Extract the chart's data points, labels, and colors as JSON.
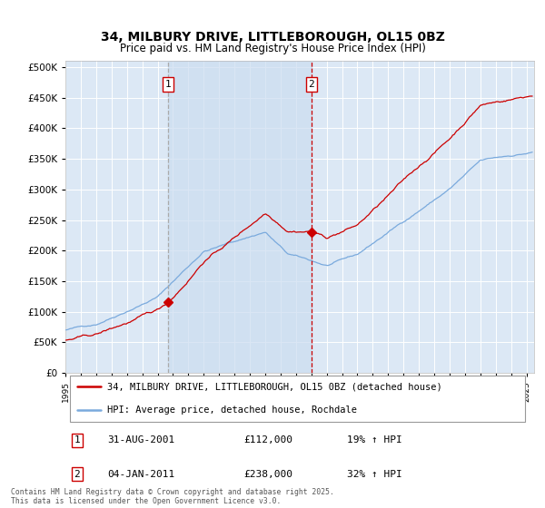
{
  "title": "34, MILBURY DRIVE, LITTLEBOROUGH, OL15 0BZ",
  "subtitle": "Price paid vs. HM Land Registry's House Price Index (HPI)",
  "hpi_label": "HPI: Average price, detached house, Rochdale",
  "property_label": "34, MILBURY DRIVE, LITTLEBOROUGH, OL15 0BZ (detached house)",
  "sale1_date": "31-AUG-2001",
  "sale1_price": "£112,000",
  "sale1_hpi": "19% ↑ HPI",
  "sale1_year": 2001.67,
  "sale1_value": 112000,
  "sale2_date": "04-JAN-2011",
  "sale2_price": "£238,000",
  "sale2_hpi": "32% ↑ HPI",
  "sale2_year": 2011.01,
  "sale2_value": 238000,
  "ylim_min": 0,
  "ylim_max": 510000,
  "background_color": "#ffffff",
  "plot_bg_color": "#dce8f5",
  "grid_color": "#ffffff",
  "red_line_color": "#cc0000",
  "blue_line_color": "#7aaadd",
  "sale1_vline_color": "#aaaaaa",
  "sale2_vline_color": "#cc0000",
  "shade_color": "#ccddf0",
  "footnote": "Contains HM Land Registry data © Crown copyright and database right 2025.\nThis data is licensed under the Open Government Licence v3.0.",
  "yticks": [
    0,
    50000,
    100000,
    150000,
    200000,
    250000,
    300000,
    350000,
    400000,
    450000,
    500000
  ],
  "xstart": 1995,
  "xend": 2025.5
}
